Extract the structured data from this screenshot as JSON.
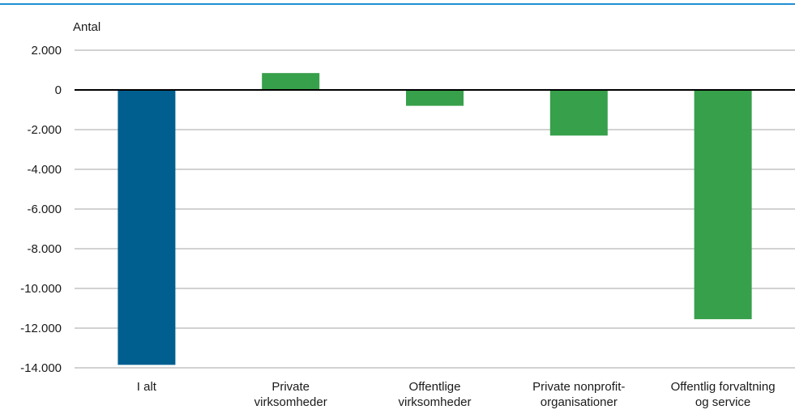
{
  "chart_data": {
    "type": "bar",
    "ylabel": "Antal",
    "categories": [
      [
        "I alt"
      ],
      [
        "Private",
        "virksomheder"
      ],
      [
        "Offentlige",
        "virksomheder"
      ],
      [
        "Private nonprofit-",
        "organisationer"
      ],
      [
        "Offentlig forvaltning",
        "og service"
      ]
    ],
    "values": [
      -13850,
      850,
      -800,
      -2300,
      -11550
    ],
    "bar_colors": [
      "#005f8f",
      "#37a04a",
      "#37a04a",
      "#37a04a",
      "#37a04a"
    ],
    "ylim": [
      -14000,
      2000
    ],
    "yticks": [
      2000,
      0,
      -2000,
      -4000,
      -6000,
      -8000,
      -10000,
      -12000,
      -14000
    ],
    "ytick_labels": [
      "2.000",
      "0",
      "-2.000",
      "-4.000",
      "-6.000",
      "-8.000",
      "-10.000",
      "-12.000",
      "-14.000"
    ],
    "grid": true,
    "legend": "none"
  },
  "colors": {
    "top_rule": "#1f8fd0",
    "grid": "#a6a6a6",
    "zero_line": "#000000"
  }
}
